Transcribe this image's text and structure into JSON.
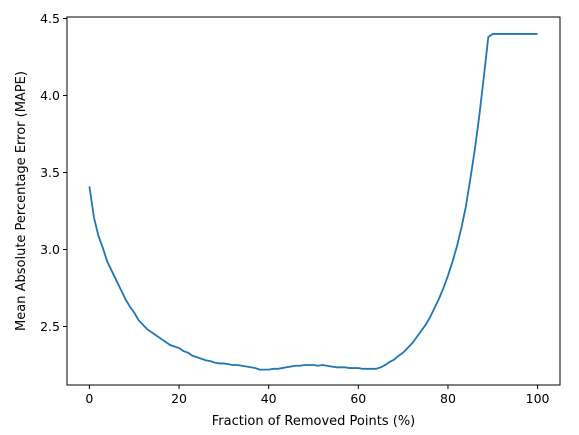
{
  "chart_data": {
    "type": "line",
    "title": "",
    "xlabel": "Fraction of Removed Points (%)",
    "ylabel": "Mean Absolute Percentage Error (MAPE)",
    "xlim": [
      -5,
      105
    ],
    "ylim": [
      2.12,
      4.51
    ],
    "grid": false,
    "line_color": "#1f77b4",
    "x_ticks": [
      0,
      20,
      40,
      60,
      80,
      100
    ],
    "x_tick_labels": [
      "0",
      "20",
      "40",
      "60",
      "80",
      "100"
    ],
    "y_ticks": [
      2.5,
      3.0,
      3.5,
      4.0,
      4.5
    ],
    "y_tick_labels": [
      "2.5",
      "3.0",
      "3.5",
      "4.0",
      "4.5"
    ],
    "series": [
      {
        "x": [
          0,
          1,
          2,
          3,
          4,
          5,
          6,
          7,
          8,
          9,
          10,
          11,
          12,
          13,
          14,
          15,
          16,
          17,
          18,
          19,
          20,
          21,
          22,
          23,
          24,
          25,
          26,
          27,
          28,
          29,
          30,
          31,
          32,
          33,
          34,
          35,
          36,
          37,
          38,
          39,
          40,
          41,
          42,
          43,
          44,
          45,
          46,
          47,
          48,
          49,
          50,
          51,
          52,
          53,
          54,
          55,
          56,
          57,
          58,
          59,
          60,
          61,
          62,
          63,
          64,
          65,
          66,
          67,
          68,
          69,
          70,
          71,
          72,
          73,
          74,
          75,
          76,
          77,
          78,
          79,
          80,
          81,
          82,
          83,
          84,
          85,
          86,
          87,
          88,
          89,
          90,
          91,
          92,
          93,
          94,
          95,
          96,
          97,
          98,
          99,
          100
        ],
        "y": [
          3.41,
          3.21,
          3.09,
          3.01,
          2.92,
          2.86,
          2.8,
          2.74,
          2.68,
          2.63,
          2.59,
          2.54,
          2.51,
          2.48,
          2.46,
          2.44,
          2.42,
          2.4,
          2.38,
          2.37,
          2.36,
          2.34,
          2.33,
          2.31,
          2.3,
          2.29,
          2.28,
          2.275,
          2.265,
          2.26,
          2.26,
          2.255,
          2.25,
          2.25,
          2.245,
          2.24,
          2.235,
          2.23,
          2.22,
          2.22,
          2.22,
          2.225,
          2.225,
          2.23,
          2.235,
          2.24,
          2.245,
          2.245,
          2.25,
          2.25,
          2.25,
          2.245,
          2.25,
          2.245,
          2.24,
          2.235,
          2.235,
          2.235,
          2.23,
          2.23,
          2.23,
          2.225,
          2.225,
          2.225,
          2.225,
          2.235,
          2.25,
          2.27,
          2.285,
          2.31,
          2.33,
          2.36,
          2.39,
          2.43,
          2.47,
          2.51,
          2.56,
          2.62,
          2.68,
          2.75,
          2.83,
          2.92,
          3.02,
          3.14,
          3.28,
          3.46,
          3.65,
          3.87,
          4.12,
          4.38,
          4.4,
          4.4,
          4.4,
          4.4,
          4.4,
          4.4,
          4.4,
          4.4,
          4.4,
          4.4,
          4.4
        ]
      }
    ]
  }
}
